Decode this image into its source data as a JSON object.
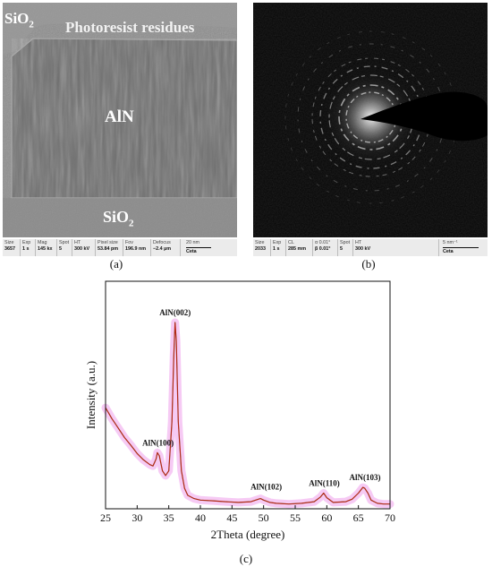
{
  "panel_a": {
    "labels": {
      "sio2_top_main": "SiO",
      "sio2_top_sub": "2",
      "photoresist": "Photoresist residues",
      "aln": "AlN",
      "sio2_bottom_main": "SiO",
      "sio2_bottom_sub": "2"
    },
    "infobar": [
      {
        "h": "Size",
        "v": "3657"
      },
      {
        "h": "Exp",
        "v": "1 s"
      },
      {
        "h": "Mag",
        "v": "145 kx"
      },
      {
        "h": "Spot",
        "v": "5"
      },
      {
        "h": "HT",
        "v": "300 kV"
      },
      {
        "h": "Pixel size",
        "v": "53.84 pm"
      },
      {
        "h": "Fov",
        "v": "196.9 nm"
      },
      {
        "h": "Defocus",
        "v": "−2.4 µm"
      }
    ],
    "scale": {
      "label": "20 nm",
      "v": "Ceta"
    },
    "caption": "(a)"
  },
  "panel_b": {
    "infobar": [
      {
        "h": "Size",
        "v": "2033"
      },
      {
        "h": "Exp",
        "v": "1 s"
      },
      {
        "h": "CL",
        "v": "285 mm"
      },
      {
        "h": "α 0.01°",
        "v": "β 0.01°"
      },
      {
        "h": "Spot",
        "v": "5"
      },
      {
        "h": "HT",
        "v": "300 kV"
      }
    ],
    "scale": {
      "label": "5 nm⁻¹",
      "v": "Ceta"
    },
    "caption": "(b)"
  },
  "panel_c": {
    "caption": "(c)"
  },
  "colors": {
    "curve": "#7a3d0c",
    "fit": "#d81c1c",
    "band": "#f3b8f0",
    "tem_bg": "#8f8f8f",
    "diffraction_bg": "#050505"
  },
  "chart_data": {
    "type": "line",
    "title": "",
    "xlabel": "2Theta (degree)",
    "ylabel": "Intensity (a.u.)",
    "xlim": [
      25,
      70
    ],
    "ylim": [
      0,
      100
    ],
    "xticks": [
      25,
      30,
      35,
      40,
      45,
      50,
      55,
      60,
      65,
      70
    ],
    "grid": false,
    "series": [
      {
        "x": [
          25,
          26,
          27,
          28,
          29,
          30,
          31,
          32,
          32.5,
          33,
          33.2,
          33.5,
          34,
          34.5,
          35,
          35.5,
          35.8,
          36.0,
          36.2,
          36.5,
          37,
          37.5,
          38,
          39,
          40,
          42,
          44,
          46,
          48,
          49.5,
          50,
          51,
          52,
          54,
          56,
          58,
          59,
          59.5,
          60,
          61,
          63,
          64,
          65,
          65.7,
          66,
          66.5,
          67,
          68,
          69,
          70
        ],
        "y": [
          44.4,
          39.6,
          35.5,
          31.3,
          27.9,
          24.3,
          21.5,
          19.4,
          18.8,
          21.9,
          24.7,
          23.3,
          16.7,
          14.6,
          16.7,
          38.2,
          67.4,
          81.9,
          73.6,
          38.2,
          16.7,
          9.0,
          5.9,
          4.5,
          3.8,
          3.5,
          3.1,
          2.8,
          3.1,
          4.5,
          3.8,
          2.8,
          2.4,
          2.1,
          2.4,
          3.1,
          5.2,
          6.9,
          4.9,
          2.8,
          3.1,
          4.2,
          6.9,
          9.4,
          9.0,
          6.9,
          3.8,
          2.4,
          2.1,
          2.1
        ]
      }
    ],
    "annotations": [
      {
        "x": 33.3,
        "y": 24.7,
        "text": "AlN(100)"
      },
      {
        "x": 36.0,
        "y": 81.9,
        "text": "AlN(002)"
      },
      {
        "x": 50.0,
        "y": 4.5,
        "text": "AlN(102)"
      },
      {
        "x": 59.6,
        "y": 6.9,
        "text": "AlN(110)"
      },
      {
        "x": 65.9,
        "y": 9.4,
        "text": "AlN(103)"
      }
    ]
  }
}
